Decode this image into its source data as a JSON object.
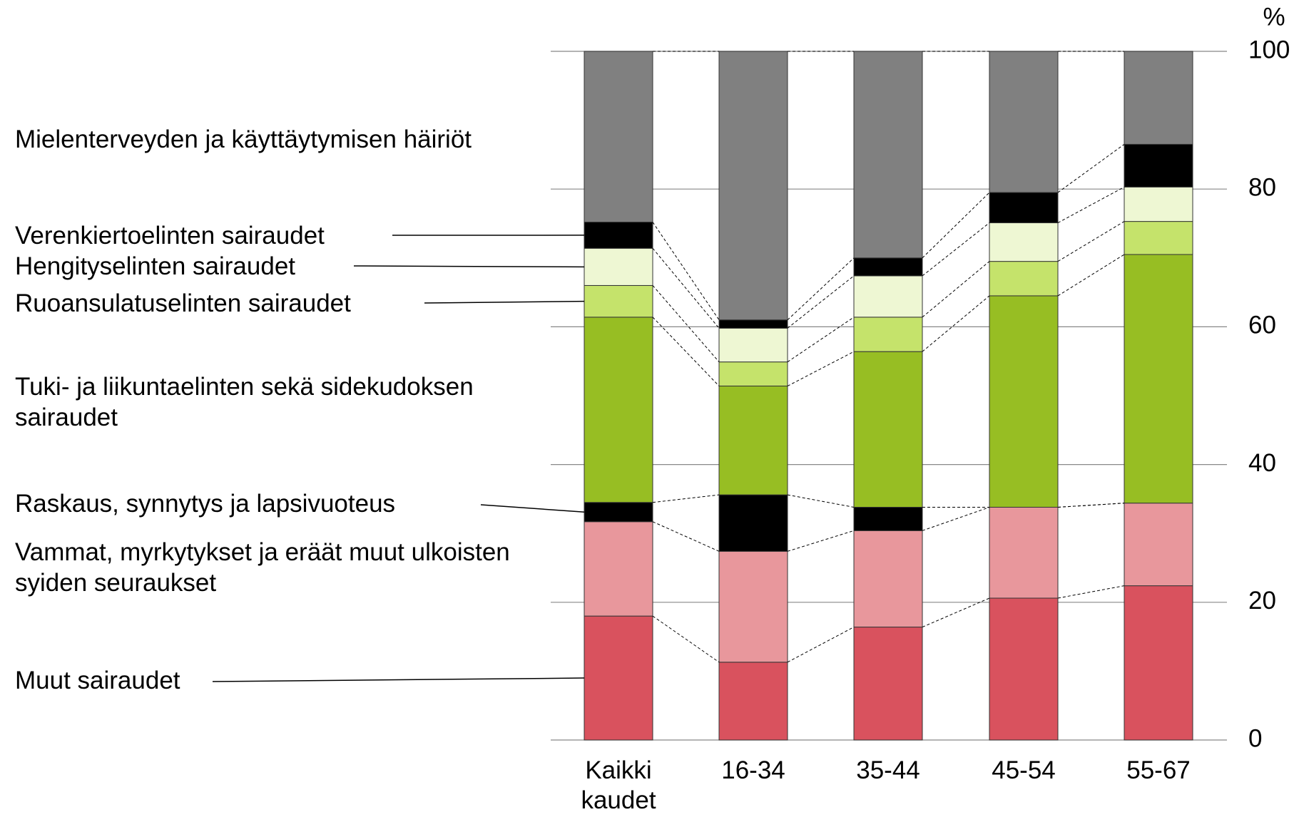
{
  "chart_data": {
    "type": "stacked_bar",
    "y_label": "%",
    "categories": [
      "Kaikki kaudet",
      "16-34",
      "35-44",
      "45-54",
      "55-67"
    ],
    "series": [
      {
        "name": "Muut sairaudet",
        "color": "#d9525e",
        "values": [
          18.0,
          11.3,
          16.4,
          20.6,
          22.4
        ]
      },
      {
        "name": "Vammat, myrkytykset ja eräät muut ulkoisten syiden seuraukset",
        "color": "#e8979c",
        "values": [
          13.7,
          16.1,
          14.0,
          13.2,
          12.0
        ]
      },
      {
        "name": "Raskaus, synnytys ja lapsivuoteus",
        "color": "#000000",
        "values": [
          2.8,
          8.2,
          3.4,
          0,
          0
        ]
      },
      {
        "name": "Tuki- ja liikuntaelinten sekä sidekudoksen sairaudet",
        "color": "#97be23",
        "values": [
          26.9,
          15.8,
          22.6,
          30.7,
          36.1
        ]
      },
      {
        "name": "Ruoansulatuselinten sairaudet",
        "color": "#c5e36b",
        "values": [
          4.6,
          3.5,
          5.0,
          5.0,
          4.8
        ]
      },
      {
        "name": "Hengityselinten sairaudet",
        "color": "#eef7d3",
        "values": [
          5.4,
          4.9,
          6.0,
          5.6,
          5.0
        ]
      },
      {
        "name": "Verenkiertoelinten sairaudet",
        "color": "#000000",
        "values": [
          3.8,
          1.2,
          2.6,
          4.4,
          6.2
        ]
      },
      {
        "name": "Mielenterveyden ja käyttäytymisen häiriöt",
        "color": "#808080",
        "values": [
          24.8,
          39.0,
          30.0,
          20.5,
          13.5
        ]
      }
    ],
    "ylim": [
      0,
      100
    ],
    "yticks": [
      0,
      20,
      40,
      60,
      80,
      100
    ],
    "grid": true
  }
}
